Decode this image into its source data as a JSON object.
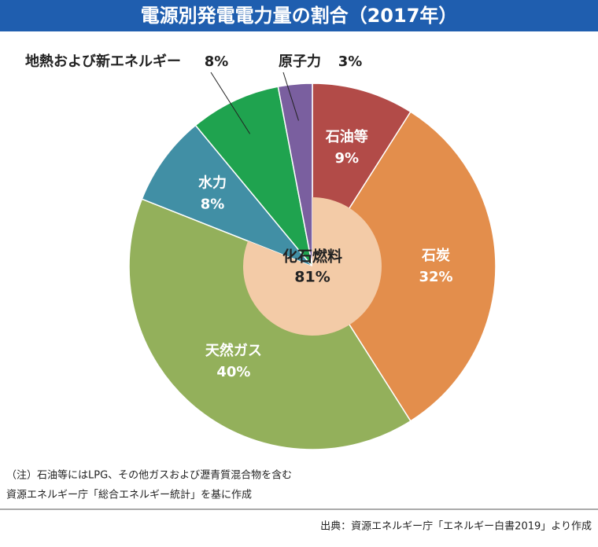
{
  "chart_data": {
    "type": "pie",
    "title": "電源別発電電力量の割合（2017年）",
    "categories": [
      "石油等",
      "石炭",
      "天然ガス",
      "水力",
      "地熱および新エネルギー",
      "原子力"
    ],
    "values": [
      9,
      32,
      40,
      8,
      8,
      3
    ],
    "value_labels": [
      "9%",
      "32%",
      "40%",
      "8%",
      "8%",
      "3%"
    ],
    "colors": [
      "#b24b48",
      "#e38e4c",
      "#93b05b",
      "#418fa5",
      "#1fa34f",
      "#7a5f9f"
    ],
    "inner": {
      "name": "化石燃料",
      "value": 81,
      "value_label": "81%",
      "color": "#f3cba7"
    },
    "notes": [
      "（注）石油等にはLPG、その他ガスおよび瀝青質混合物を含む",
      "資源エネルギー庁「総合エネルギー統計」を基に作成"
    ],
    "source": "出典：資源エネルギー庁「エネルギー白書2019」より作成"
  }
}
